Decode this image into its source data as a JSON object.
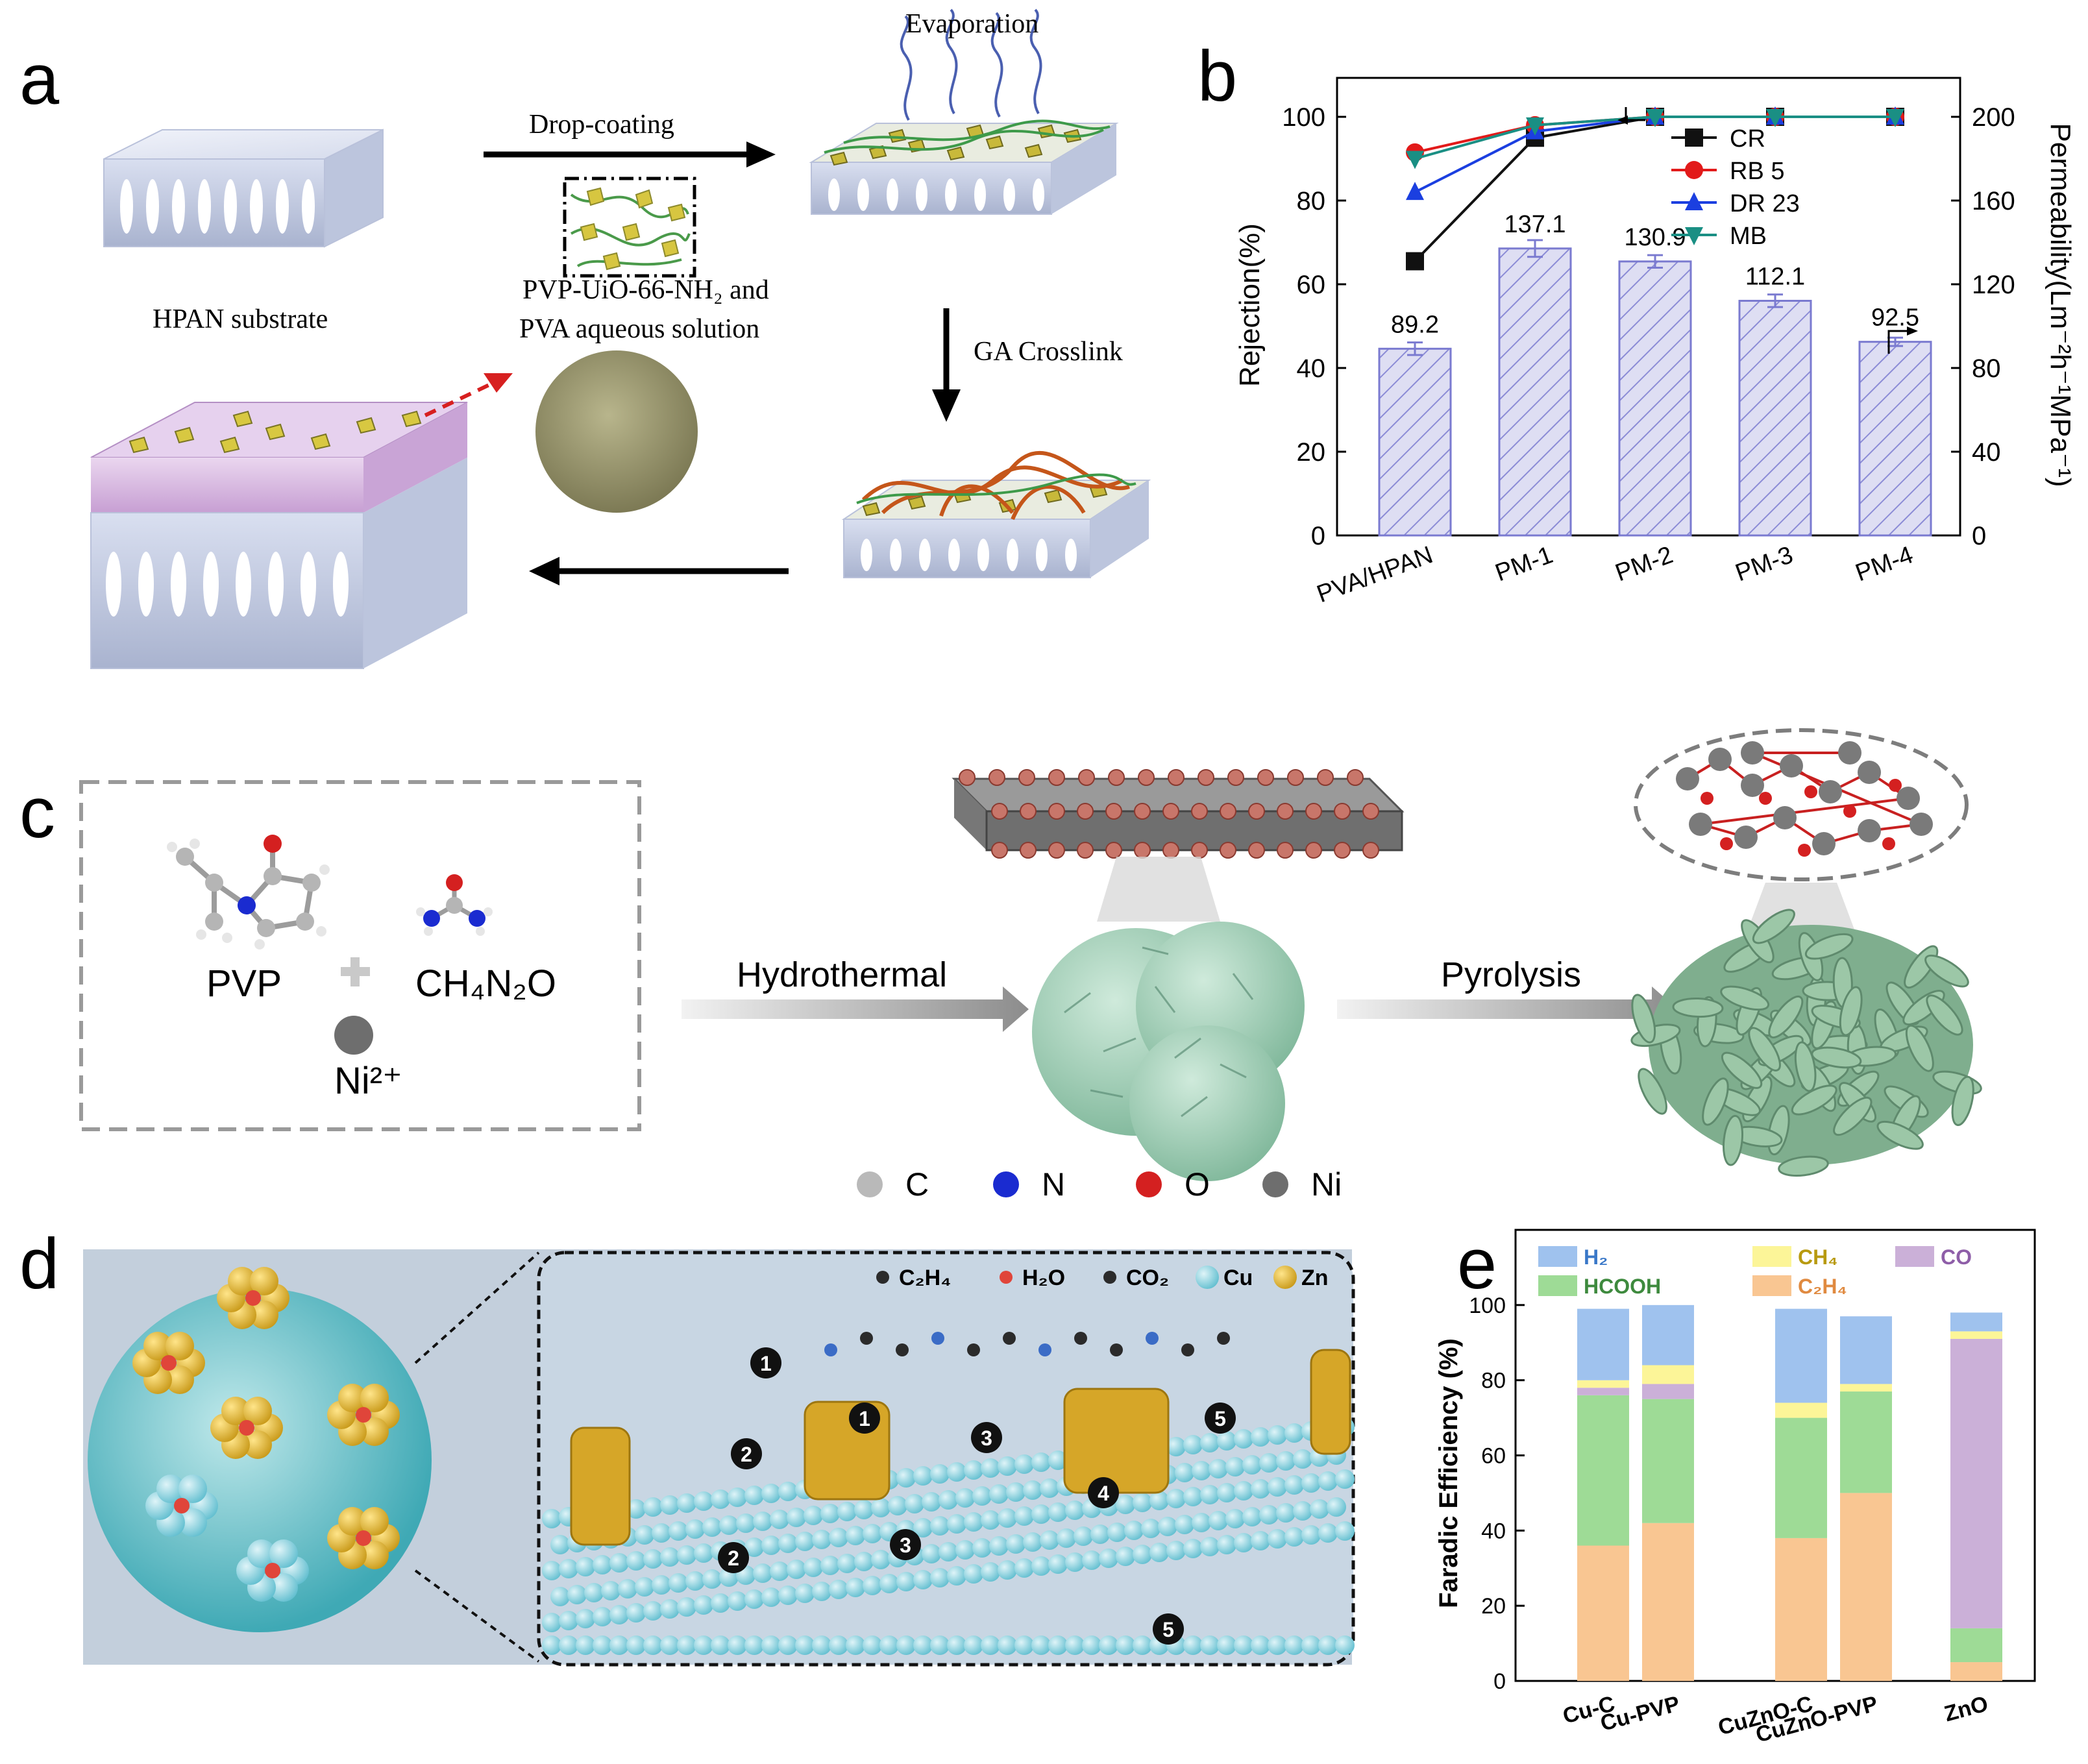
{
  "panels": {
    "a": {
      "letter": "a",
      "label_evaporation": "Evaporation",
      "label_dropcoating": "Drop-coating",
      "label_solution_1": "PVP-UiO-66-NH₂ and",
      "label_solution_2": "PVA  aqueous solution",
      "label_substrate": "HPAN substrate",
      "label_crosslink": "GA Crosslink"
    },
    "b": {
      "letter": "b"
    },
    "c": {
      "letter": "c",
      "pvp": "PVP",
      "urea": "CH₄N₂O",
      "nickel": "Ni²⁺",
      "hydrothermal": "Hydrothermal",
      "pyrolysis": "Pyrolysis",
      "legend": [
        {
          "label": "C",
          "color": "#b9b9b9"
        },
        {
          "label": "N",
          "color": "#1a2bd0"
        },
        {
          "label": "O",
          "color": "#d42020"
        },
        {
          "label": "Ni",
          "color": "#6e6e6e"
        }
      ]
    },
    "d": {
      "letter": "d",
      "legend": [
        {
          "label": "C₂H₄"
        },
        {
          "label": "H₂O"
        },
        {
          "label": "CO₂"
        },
        {
          "label": "Cu"
        },
        {
          "label": "Zn"
        }
      ],
      "steps": [
        "1",
        "2",
        "3",
        "4",
        "5"
      ]
    },
    "e": {
      "letter": "e"
    }
  },
  "chart_data": [
    {
      "id": "panel-b",
      "type": "bar",
      "categories": [
        "PVA/HPAN",
        "PM-1",
        "PM-2",
        "PM-3",
        "PM-4"
      ],
      "bars": {
        "values": [
          89.2,
          137.1,
          130.9,
          112.1,
          92.5
        ],
        "labels": [
          "89.2",
          "137.1",
          "130.9",
          "112.1",
          "92.5"
        ],
        "errors": [
          3,
          4,
          3,
          3,
          2
        ],
        "fill": "#dcdcf2",
        "stroke": "#7a7ad0"
      },
      "lines": [
        {
          "name": "CR",
          "values": [
            65.5,
            95,
            100,
            100,
            100
          ],
          "color": "#111111",
          "marker": "square"
        },
        {
          "name": "RB 5",
          "values": [
            91.5,
            98,
            100,
            100,
            100
          ],
          "color": "#e21a1a",
          "marker": "circle"
        },
        {
          "name": "DR 23",
          "values": [
            82,
            96.5,
            100,
            100,
            100
          ],
          "color": "#1b3fe0",
          "marker": "triangle-up"
        },
        {
          "name": "MB",
          "values": [
            90,
            98,
            100,
            100,
            100
          ],
          "color": "#1a8f84",
          "marker": "triangle-down"
        }
      ],
      "ylabel": "Rejection(%)",
      "ylim": [
        0,
        100
      ],
      "yticks": [
        "0",
        "20",
        "40",
        "60",
        "80",
        "100"
      ],
      "y2label": "Permeability(Lm⁻²h⁻¹MPa⁻¹)",
      "y2lim": [
        0,
        200
      ],
      "y2ticks": [
        "0",
        "40",
        "80",
        "120",
        "160",
        "200"
      ],
      "legend_position": "top-right"
    },
    {
      "id": "panel-e",
      "type": "bar",
      "stacked": true,
      "categories": [
        "Cu-C",
        "Cu-PVP",
        "CuZnO-C",
        "CuZnO-PVP",
        "ZnO"
      ],
      "series": [
        {
          "name": "C₂H₄",
          "values": [
            36,
            42,
            38,
            50,
            5
          ],
          "color": "#f9c692"
        },
        {
          "name": "HCOOH",
          "values": [
            40,
            33,
            32,
            27,
            9
          ],
          "color": "#9edb96"
        },
        {
          "name": "CO",
          "values": [
            2,
            4,
            0,
            0,
            77
          ],
          "color": "#cbb0d8"
        },
        {
          "name": "CH₄",
          "values": [
            2,
            5,
            4,
            2,
            2
          ],
          "color": "#fcf598"
        },
        {
          "name": "H₂",
          "values": [
            19,
            16,
            25,
            18,
            5
          ],
          "color": "#9fc2ee"
        }
      ],
      "ylabel": "Faradic Efficiency (%)",
      "ylim": [
        0,
        120
      ],
      "yticks": [
        "0",
        "20",
        "40",
        "60",
        "80",
        "100"
      ],
      "legend_position": "top"
    }
  ]
}
